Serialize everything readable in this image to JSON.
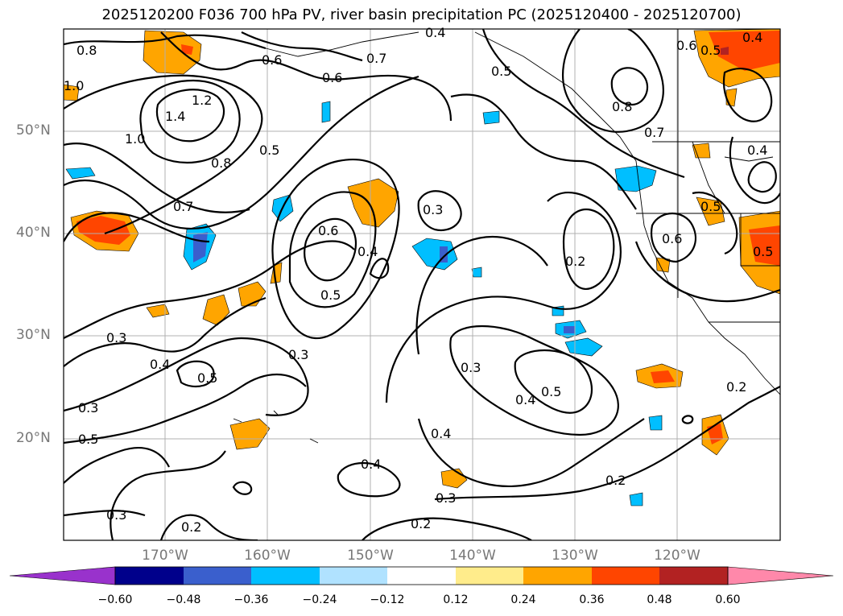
{
  "title": "2025120200 F036 700 hPa PV, river basin precipitation PC (2025120400 - 2025120700)",
  "lat_labels": [
    "50°N",
    "40°N",
    "30°N",
    "20°N"
  ],
  "lon_labels": [
    "170°W",
    "160°W",
    "150°W",
    "140°W",
    "130°W",
    "120°W"
  ],
  "colorbar": {
    "ticks": [
      "−0.60",
      "−0.48",
      "−0.36",
      "−0.24",
      "−0.12",
      "0.12",
      "0.24",
      "0.36",
      "0.48",
      "0.60"
    ],
    "colors": [
      "#9932cc",
      "#00008b",
      "#3a5fcd",
      "#00bfff",
      "#b0e2ff",
      "#ffffff",
      "#ffec8b",
      "#ffa500",
      "#ff4500",
      "#b22222",
      "#ff88aa"
    ]
  },
  "contour_labels": [
    {
      "text": "0.8"
    },
    {
      "text": "1.0"
    },
    {
      "text": "1.2"
    },
    {
      "text": "1.4"
    },
    {
      "text": "1.0"
    },
    {
      "text": "0.8"
    },
    {
      "text": "0.7"
    },
    {
      "text": "0.6"
    },
    {
      "text": "0.7"
    },
    {
      "text": "0.6"
    },
    {
      "text": "0.5"
    },
    {
      "text": "0.4"
    },
    {
      "text": "0.5"
    },
    {
      "text": "0.8"
    },
    {
      "text": "0.7"
    },
    {
      "text": "0.6"
    },
    {
      "text": "0.4"
    },
    {
      "text": "0.5"
    },
    {
      "text": "0.6"
    },
    {
      "text": "0.5"
    },
    {
      "text": "0.4"
    },
    {
      "text": "0.6"
    },
    {
      "text": "0.5"
    },
    {
      "text": "0.5"
    },
    {
      "text": "0.4"
    },
    {
      "text": "0.3"
    },
    {
      "text": "0.2"
    },
    {
      "text": "0.3"
    },
    {
      "text": "0.4"
    },
    {
      "text": "0.5"
    },
    {
      "text": "0.3"
    },
    {
      "text": "0.4"
    },
    {
      "text": "0.5"
    },
    {
      "text": "0.3"
    },
    {
      "text": "0.5"
    },
    {
      "text": "0.3"
    },
    {
      "text": "0.4"
    },
    {
      "text": "0.4"
    },
    {
      "text": "0.3"
    },
    {
      "text": "0.2"
    },
    {
      "text": "0.2"
    },
    {
      "text": "0.2"
    },
    {
      "text": "0.2"
    },
    {
      "text": "0.3"
    }
  ]
}
